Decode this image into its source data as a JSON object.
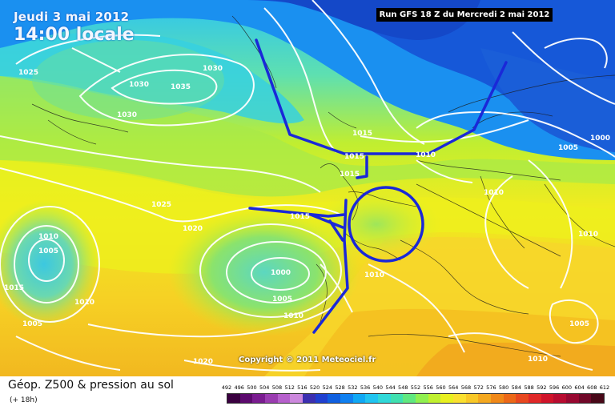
{
  "title": {
    "date": "Jeudi 3 mai 2012",
    "time": "14:00 locale"
  },
  "run_info": "Run GFS 18 Z du Mercredi 2 mai 2012",
  "copyright": "Copyright © 2011 Meteociel.fr",
  "footer": {
    "title": "Géop. Z500 & pression au sol",
    "subtitle": "(+ 18h)"
  },
  "pressure_labels": [
    "1025",
    "1030",
    "1035",
    "1030",
    "1030",
    "1015",
    "1015",
    "1015",
    "1000",
    "1005",
    "1010",
    "1025",
    "1020",
    "1010",
    "1005",
    "1015",
    "1010",
    "1005",
    "1000",
    "1005",
    "1010",
    "1010",
    "1010",
    "1010",
    "1005",
    "1010",
    "1020",
    "1000",
    "1015"
  ],
  "colorbar": {
    "labels": [
      "492",
      "496",
      "500",
      "504",
      "508",
      "512",
      "516",
      "520",
      "524",
      "528",
      "532",
      "536",
      "540",
      "544",
      "548",
      "552",
      "556",
      "560",
      "564",
      "568",
      "572",
      "576",
      "580",
      "584",
      "588",
      "592",
      "596",
      "600",
      "604",
      "608",
      "612"
    ],
    "colors": [
      "#3a0040",
      "#5c0a6e",
      "#7a1c90",
      "#9a3cb0",
      "#b660cc",
      "#cc88dd",
      "#3c2fb0",
      "#2040d0",
      "#1060e0",
      "#1080f0",
      "#10a8f4",
      "#20c4f0",
      "#30d8d8",
      "#40e0b0",
      "#60e880",
      "#90f050",
      "#c0f030",
      "#e8f020",
      "#fae030",
      "#f8c828",
      "#f4a820",
      "#f08818",
      "#ec6818",
      "#e84820",
      "#e02828",
      "#d0142a",
      "#b80c30",
      "#980830",
      "#700828",
      "#480818"
    ]
  }
}
